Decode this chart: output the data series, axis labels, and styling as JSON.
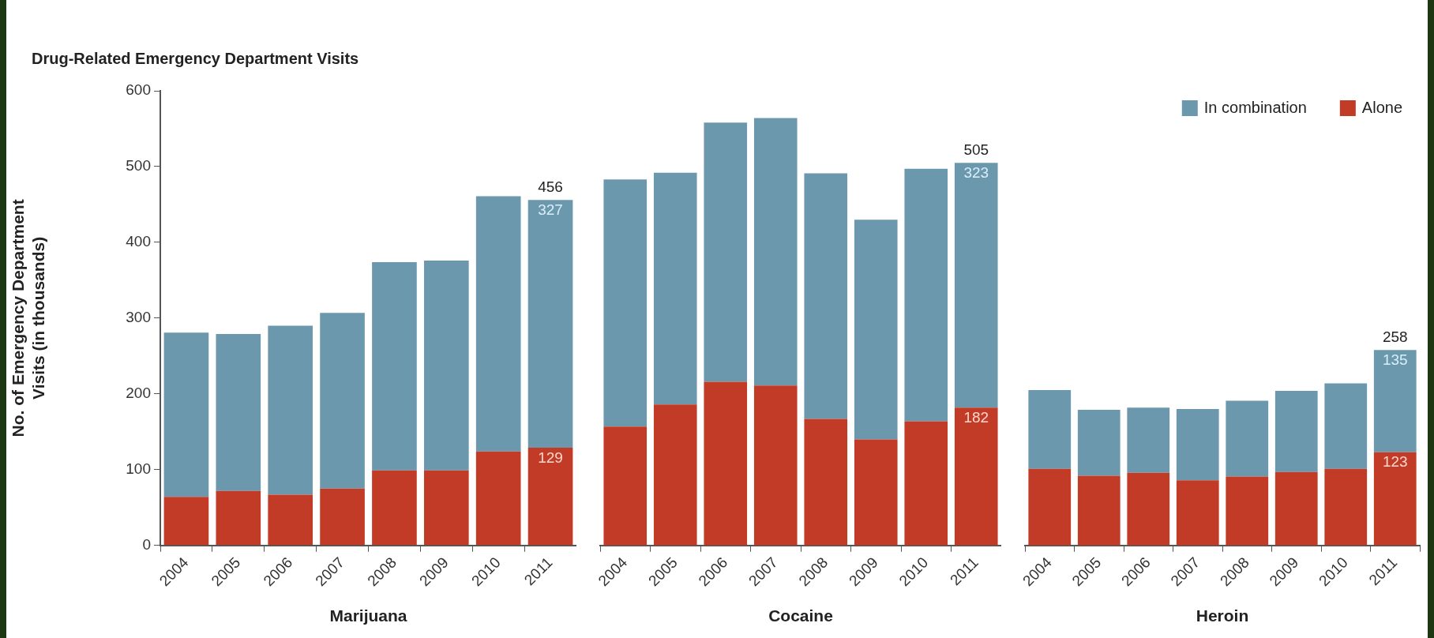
{
  "chart_data": [
    {
      "type": "bar",
      "title": "Drug-Related Emergency Department Visits",
      "xlabel": "Marijuana",
      "ylabel": "No. of Emergency Department Visits (in thousands)",
      "categories": [
        "2004",
        "2005",
        "2006",
        "2007",
        "2008",
        "2009",
        "2010",
        "2011"
      ],
      "stacked": true,
      "ylim": [
        0,
        600
      ],
      "yticks": [
        0,
        100,
        200,
        300,
        400,
        500,
        600
      ],
      "grid": false,
      "series": [
        {
          "color": "#c23b27",
          "values": [
            64,
            72,
            67,
            75,
            99,
            99,
            124,
            129
          ],
          "value_labels": [
            null,
            null,
            null,
            null,
            null,
            null,
            null,
            "129"
          ]
        },
        {
          "color": "#6c98ae",
          "values": [
            217,
            207,
            223,
            232,
            275,
            277,
            337,
            327
          ],
          "value_labels": [
            null,
            null,
            null,
            null,
            null,
            null,
            null,
            "327"
          ]
        }
      ],
      "totals": [
        null,
        null,
        null,
        null,
        null,
        null,
        null,
        "456"
      ]
    },
    {
      "type": "bar",
      "xlabel": "Cocaine",
      "categories": [
        "2004",
        "2005",
        "2006",
        "2007",
        "2008",
        "2009",
        "2010",
        "2011"
      ],
      "stacked": true,
      "ylim": [
        0,
        600
      ],
      "yticks": [
        0,
        100,
        200,
        300,
        400,
        500,
        600
      ],
      "grid": false,
      "tick_labels": "x",
      "series": [
        {
          "color": "#c23b27",
          "values": [
            157,
            186,
            216,
            211,
            167,
            140,
            164,
            182
          ],
          "value_labels": [
            null,
            null,
            null,
            null,
            null,
            null,
            null,
            "182"
          ]
        },
        {
          "color": "#6c98ae",
          "values": [
            326,
            306,
            342,
            353,
            324,
            290,
            333,
            323
          ],
          "value_labels": [
            null,
            null,
            null,
            null,
            null,
            null,
            null,
            "323"
          ]
        }
      ],
      "totals": [
        null,
        null,
        null,
        null,
        null,
        null,
        null,
        "505"
      ]
    },
    {
      "type": "bar",
      "xlabel": "Heroin",
      "categories": [
        "2004",
        "2005",
        "2006",
        "2007",
        "2008",
        "2009",
        "2010",
        "2011"
      ],
      "stacked": true,
      "ylim": [
        0,
        600
      ],
      "yticks": [
        0,
        100,
        200,
        300,
        400,
        500,
        600
      ],
      "grid": false,
      "tick_labels": "x",
      "legend": "top right",
      "series": [
        {
          "name": "Alone",
          "color": "#c23b27",
          "values": [
            101,
            92,
            96,
            86,
            91,
            97,
            101,
            123
          ],
          "value_labels": [
            null,
            null,
            null,
            null,
            null,
            null,
            null,
            "123"
          ]
        },
        {
          "name": "In combination",
          "color": "#6c98ae",
          "values": [
            104,
            87,
            86,
            94,
            100,
            107,
            113,
            135
          ],
          "value_labels": [
            null,
            null,
            null,
            null,
            null,
            null,
            null,
            "135"
          ]
        }
      ],
      "totals": [
        null,
        null,
        null,
        null,
        null,
        null,
        null,
        "258"
      ]
    }
  ]
}
